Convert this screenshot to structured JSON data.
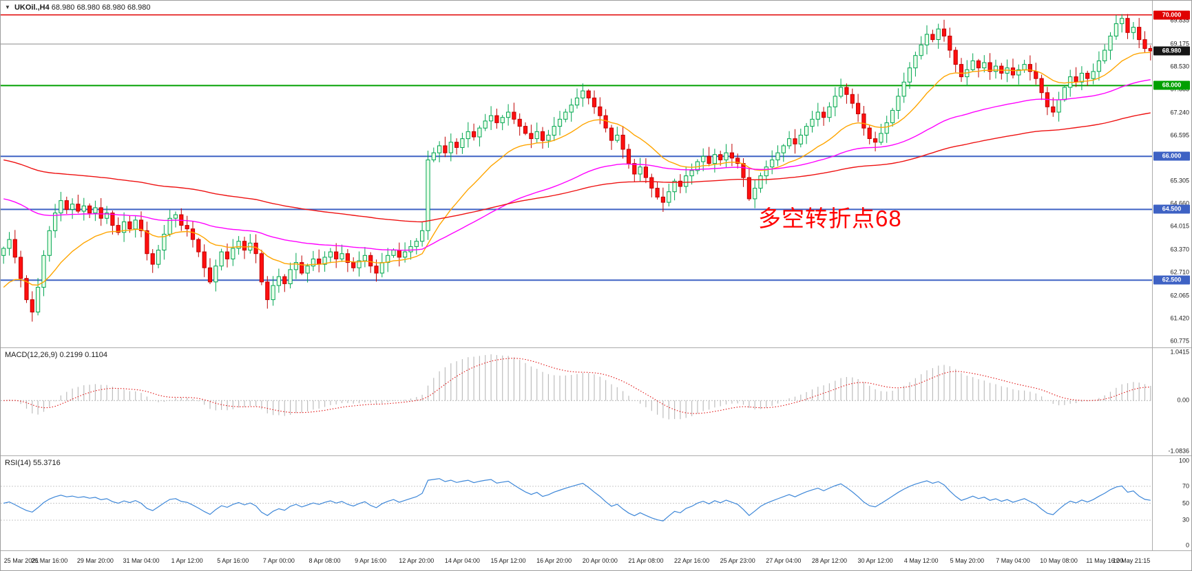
{
  "header": {
    "dropdown_icon": "▼",
    "symbol_period": "UKOil.,H4",
    "ohlc": "68.980 68.980 68.980 68.980"
  },
  "chart_data": [
    {
      "type": "candlestick",
      "title": "UKOil.,H4",
      "symbol": "UKOil",
      "timeframe": "H4",
      "y_min": 60.6,
      "y_max": 70.4,
      "first_open": 63.2,
      "closes": [
        63.4,
        63.65,
        63.15,
        62.55,
        61.95,
        61.6,
        62.3,
        63.2,
        63.9,
        64.4,
        64.75,
        64.5,
        64.65,
        64.45,
        64.6,
        64.4,
        64.55,
        64.25,
        64.4,
        64.05,
        63.85,
        64.15,
        63.95,
        64.2,
        63.9,
        63.25,
        62.95,
        63.35,
        63.8,
        64.25,
        64.35,
        64.05,
        63.95,
        63.65,
        63.3,
        62.85,
        62.45,
        62.9,
        63.3,
        63.1,
        63.4,
        63.6,
        63.35,
        63.55,
        63.25,
        62.45,
        61.95,
        62.35,
        62.6,
        62.4,
        62.8,
        63.0,
        62.7,
        62.9,
        63.1,
        62.95,
        63.15,
        63.3,
        63.1,
        63.25,
        63.0,
        62.85,
        63.05,
        63.2,
        62.9,
        62.7,
        63.0,
        63.2,
        63.35,
        63.15,
        63.3,
        63.45,
        63.6,
        63.9,
        65.9,
        66.1,
        66.3,
        66.1,
        66.4,
        66.25,
        66.5,
        66.7,
        66.55,
        66.8,
        67.0,
        67.15,
        66.95,
        67.1,
        67.25,
        67.05,
        66.85,
        66.65,
        66.5,
        66.7,
        66.45,
        66.6,
        66.85,
        67.05,
        67.25,
        67.45,
        67.65,
        67.85,
        67.65,
        67.4,
        67.15,
        66.8,
        66.45,
        66.6,
        66.2,
        65.8,
        65.5,
        65.7,
        65.4,
        65.1,
        64.85,
        64.7,
        65.0,
        65.3,
        65.15,
        65.45,
        65.6,
        65.85,
        66.0,
        65.8,
        66.05,
        65.9,
        66.1,
        65.95,
        65.8,
        65.4,
        64.8,
        65.1,
        65.45,
        65.7,
        65.9,
        66.1,
        66.3,
        66.5,
        66.35,
        66.6,
        66.85,
        67.05,
        67.25,
        67.1,
        67.4,
        67.7,
        67.95,
        67.75,
        67.5,
        67.2,
        66.8,
        66.5,
        66.4,
        66.65,
        66.95,
        67.3,
        67.7,
        68.1,
        68.5,
        68.85,
        69.15,
        69.45,
        69.3,
        69.6,
        69.4,
        69.0,
        68.6,
        68.25,
        68.45,
        68.7,
        68.5,
        68.65,
        68.4,
        68.55,
        68.35,
        68.5,
        68.3,
        68.45,
        68.6,
        68.4,
        68.2,
        67.8,
        67.4,
        67.25,
        67.6,
        67.95,
        68.25,
        68.1,
        68.35,
        68.2,
        68.4,
        68.7,
        69.0,
        69.4,
        69.75,
        69.9,
        69.5,
        69.65,
        69.3,
        69.05,
        68.98
      ],
      "axis_ticks": [
        "69.835",
        "69.175",
        "68.530",
        "67.885",
        "67.240",
        "66.595",
        "65.305",
        "64.660",
        "64.015",
        "63.370",
        "62.710",
        "62.065",
        "61.420",
        "60.775"
      ],
      "h_lines": [
        {
          "value": 70.0,
          "label": "70.000",
          "color": "#e00000",
          "width": 1.5,
          "badge": true
        },
        {
          "value": 69.175,
          "label": "",
          "color": "#8a8a8a",
          "width": 1,
          "badge": false
        },
        {
          "value": 68.0,
          "label": "68.000",
          "color": "#00a000",
          "width": 2,
          "badge": true
        },
        {
          "value": 66.0,
          "label": "66.000",
          "color": "#3e62c4",
          "width": 2,
          "badge": true
        },
        {
          "value": 64.5,
          "label": "64.500",
          "color": "#3e62c4",
          "width": 2,
          "badge": true
        },
        {
          "value": 62.5,
          "label": "62.500",
          "color": "#3e62c4",
          "width": 2,
          "badge": true
        }
      ],
      "price_badge": {
        "label": "68.980",
        "value": 68.98,
        "color": "#151515"
      },
      "moving_averages": [
        {
          "name": "ma-fast",
          "period": 18,
          "color": "#ffa500",
          "init": 62.3
        },
        {
          "name": "ma-medium",
          "period": 60,
          "color": "#ff00ff",
          "init": 64.8
        },
        {
          "name": "ma-slow",
          "period": 130,
          "color": "#ee1111",
          "init": 65.9
        }
      ],
      "annotation": {
        "text": "多空转折点68",
        "color": "#ff0000"
      },
      "candle_up": {
        "fill": "#eaffea",
        "stroke": "#00a550"
      },
      "candle_down": {
        "fill": "#ff0f0f",
        "stroke": "#c00000"
      }
    },
    {
      "type": "macd",
      "label": "MACD(12,26,9) 0.2199 0.1104",
      "params": [
        12,
        26,
        9
      ],
      "current": {
        "macd": 0.2199,
        "signal": 0.1104
      },
      "axis_ticks": [
        "1.0415",
        "0.00",
        "-1.0836"
      ],
      "y_min": -1.17,
      "y_max": 1.12,
      "histogram_color": "#bdbdbd",
      "signal_color": "#e01010",
      "derived_from": "chart_data[0].closes"
    },
    {
      "type": "rsi",
      "label": "RSI(14) 55.3716",
      "period": 14,
      "current": 55.3716,
      "axis_ticks": [
        "100",
        "70",
        "50",
        "30",
        "0"
      ],
      "levels": [
        70,
        50,
        30
      ],
      "line_color": "#3c86d8",
      "derived_from": "chart_data[0].closes"
    }
  ],
  "time_axis": {
    "step_candles": 8,
    "labels": [
      "25 Mar 2021",
      "26 Mar 16:00",
      "29 Mar 20:00",
      "31 Mar 04:00",
      "1 Apr 12:00",
      "5 Apr 16:00",
      "7 Apr 00:00",
      "8 Apr 08:00",
      "9 Apr 16:00",
      "12 Apr 20:00",
      "14 Apr 04:00",
      "15 Apr 12:00",
      "16 Apr 20:00",
      "20 Apr 00:00",
      "21 Apr 08:00",
      "22 Apr 16:00",
      "25 Apr 23:00",
      "27 Apr 04:00",
      "28 Apr 12:00",
      "30 Apr 12:00",
      "4 May 12:00",
      "5 May 20:00",
      "7 May 04:00",
      "10 May 08:00",
      "11 May 16:00",
      "12 May 21:15"
    ]
  }
}
